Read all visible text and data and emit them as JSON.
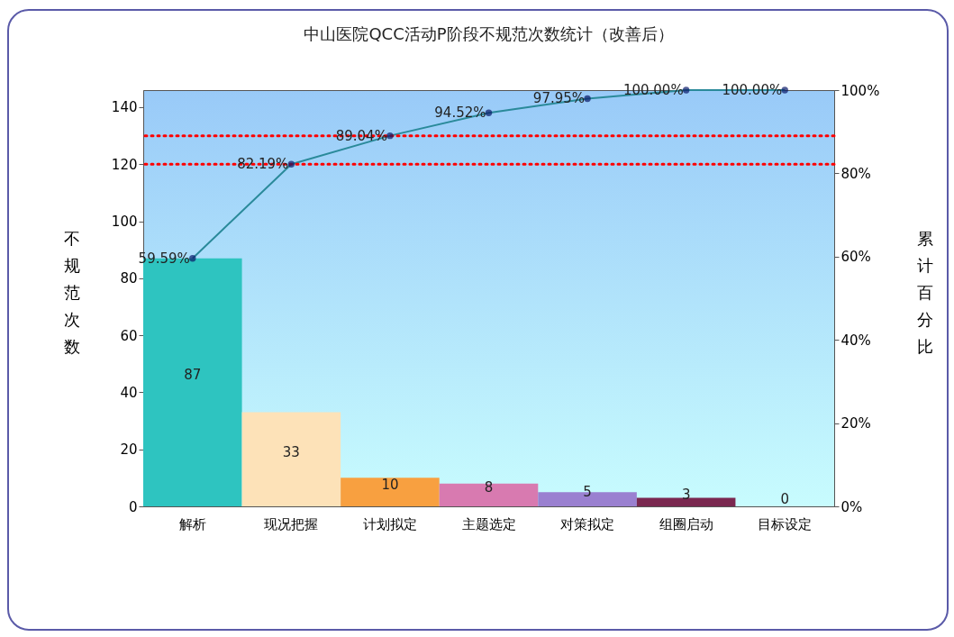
{
  "chart_data": {
    "type": "bar",
    "title": "中山医院QCC活动P阶段不规范次数统计（改善后）",
    "ylabel": "不规范次数",
    "y2label": "累计百分比",
    "categories": [
      "解析",
      "现况把握",
      "计划拟定",
      "主题选定",
      "对策拟定",
      "组圈启动",
      "目标设定"
    ],
    "series": [
      {
        "colors": [
          "#2ec4c0",
          "#fde2b8",
          "#f8a040",
          "#d87ab0",
          "#9a80d0",
          "#7a2850",
          "#c8f8fc"
        ],
        "values": [
          87,
          33,
          10,
          8,
          5,
          3,
          0
        ],
        "value_labels": [
          "87",
          "33",
          "10",
          "8",
          "5",
          "3",
          "0"
        ]
      },
      {
        "type": "line",
        "axis": "y2",
        "color": "#2a8a9a",
        "marker": "circle",
        "values": [
          59.59,
          82.19,
          89.04,
          94.52,
          97.95,
          100,
          100
        ],
        "value_labels": [
          "59.59%",
          "82.19%",
          "89.04%",
          "94.52%",
          "97.95%",
          "100.00%",
          "100.00%"
        ]
      }
    ],
    "ylim": [
      0,
      146
    ],
    "yticks": [
      0,
      20,
      40,
      60,
      80,
      100,
      120,
      140
    ],
    "y2lim": [
      0,
      100
    ],
    "y2ticks": [
      {
        "value": 0,
        "label": "0%"
      },
      {
        "value": 20,
        "label": "20%"
      },
      {
        "value": 40,
        "label": "40%"
      },
      {
        "value": 60,
        "label": "60%"
      },
      {
        "value": 80,
        "label": "80%"
      },
      {
        "value": 100,
        "label": "100%"
      }
    ],
    "ref_lines": [
      {
        "axis": "y2",
        "value": 89.04,
        "color": "#ff0000",
        "line_style": "dotted"
      },
      {
        "axis": "y2",
        "value": 82.19,
        "color": "#ff0000",
        "line_style": "dotted"
      }
    ],
    "grid": false
  }
}
